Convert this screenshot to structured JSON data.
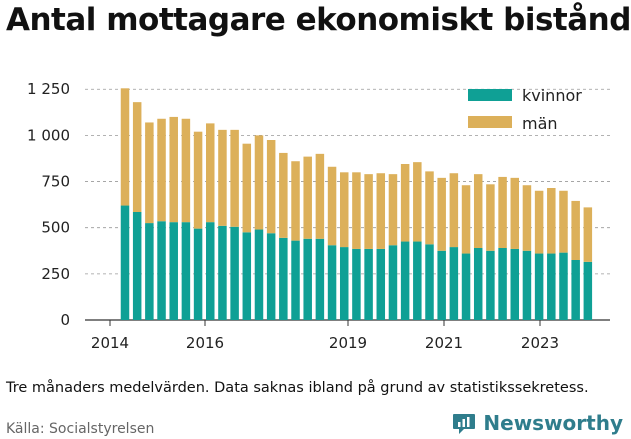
{
  "title": "Antal mottagare ekonomiskt bistånd",
  "note": "Tre månaders medelvärden. Data saknas ibland på grund av statistikssekretess.",
  "source": "Källa: Socialstyrelsen",
  "brand": {
    "name": "Newsworthy",
    "icon": "newsworthy-logo-icon"
  },
  "colors": {
    "kvinnor": "#0fa095",
    "man": "#dcb05a"
  },
  "chart_data": {
    "type": "bar",
    "stacked": true,
    "title": "Antal mottagare ekonomiskt bistånd",
    "xlabel": "",
    "ylabel": "",
    "ylim": [
      0,
      1300
    ],
    "yticks": [
      0,
      250,
      500,
      750,
      1000,
      1250
    ],
    "ytick_labels": [
      "0",
      "250",
      "500",
      "750",
      "1 000",
      "1 250"
    ],
    "xticks": [
      "2014",
      "2016",
      "2019",
      "2021",
      "2023"
    ],
    "legend_position": "top-right",
    "grid": "horizontal",
    "series": [
      {
        "name": "kvinnor",
        "values": [
          620,
          585,
          525,
          535,
          530,
          530,
          495,
          530,
          510,
          505,
          475,
          490,
          470,
          445,
          430,
          440,
          440,
          405,
          395,
          385,
          385,
          385,
          405,
          425,
          425,
          410,
          375,
          395,
          360,
          390,
          375,
          390,
          385,
          375,
          360,
          360,
          365,
          325,
          315
        ]
      },
      {
        "name": "män",
        "values": [
          635,
          595,
          545,
          555,
          570,
          560,
          525,
          535,
          520,
          525,
          480,
          510,
          505,
          460,
          430,
          445,
          460,
          425,
          405,
          415,
          405,
          410,
          385,
          420,
          430,
          395,
          395,
          400,
          370,
          400,
          360,
          385,
          385,
          355,
          340,
          355,
          335,
          320,
          295
        ]
      }
    ]
  }
}
